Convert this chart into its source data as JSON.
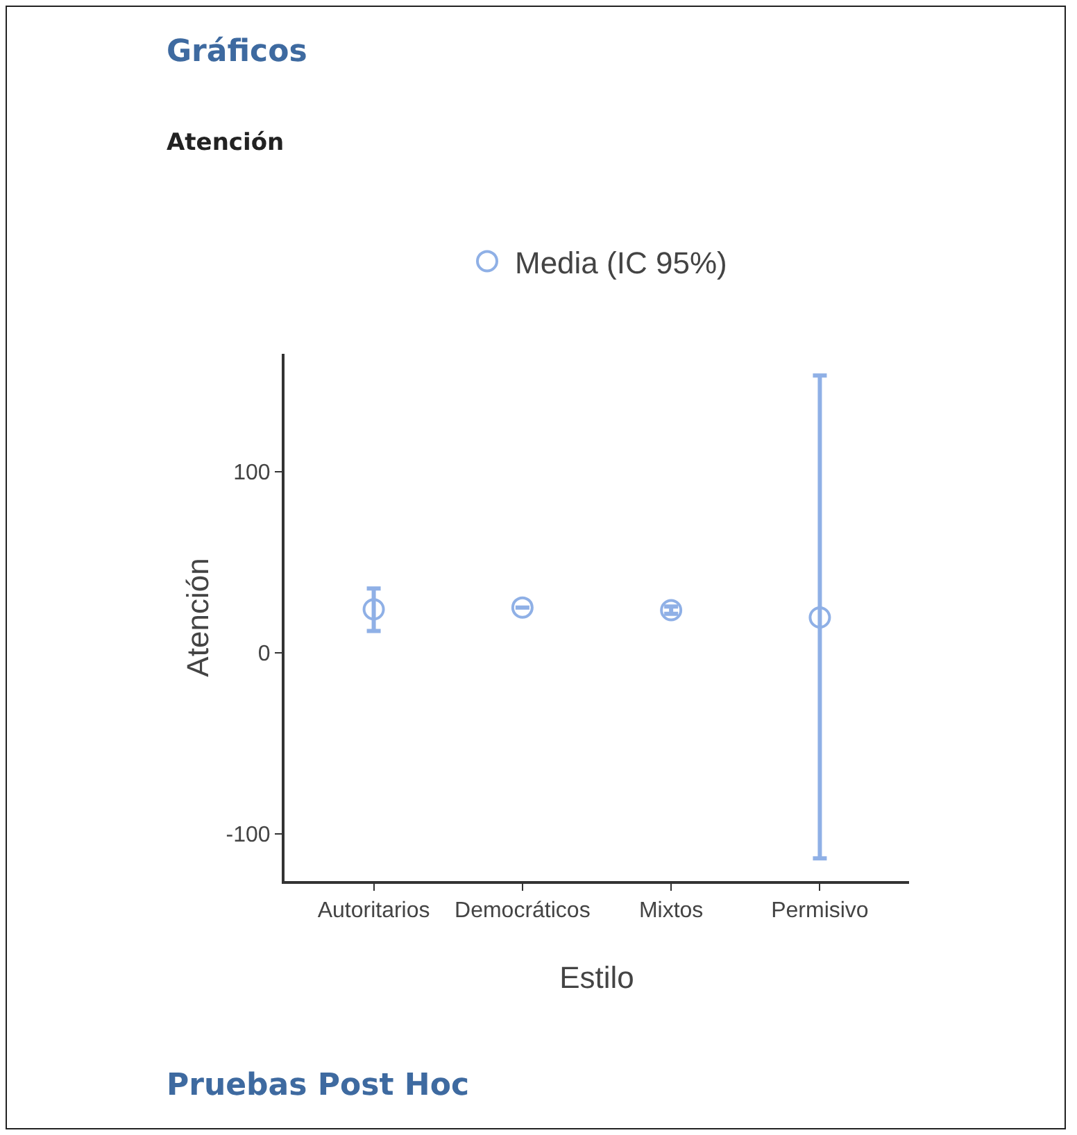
{
  "chart_data": {
    "type": "scatter",
    "title": "Gráficos",
    "subtitle": "Atención",
    "annotations": [
      "Pruebas Post Hoc"
    ],
    "xlabel": "Estilo",
    "ylabel": "Atención",
    "categories": [
      "Autoritarios",
      "Democráticos",
      "Mixtos",
      "Permisivo"
    ],
    "series": [
      {
        "name": "Media (IC 95%)",
        "color": "#8fb0e6",
        "values": [
          24,
          25,
          23.5,
          19.5
        ],
        "errors": [
          [
            12,
            35.5
          ],
          null,
          [
            21.5,
            25.5
          ],
          [
            -113.5,
            153
          ]
        ]
      }
    ],
    "ylim": [
      -126,
      165
    ],
    "yticks": [
      -100,
      0,
      100
    ],
    "grid": false,
    "legend": "top",
    "marker": "circle"
  }
}
